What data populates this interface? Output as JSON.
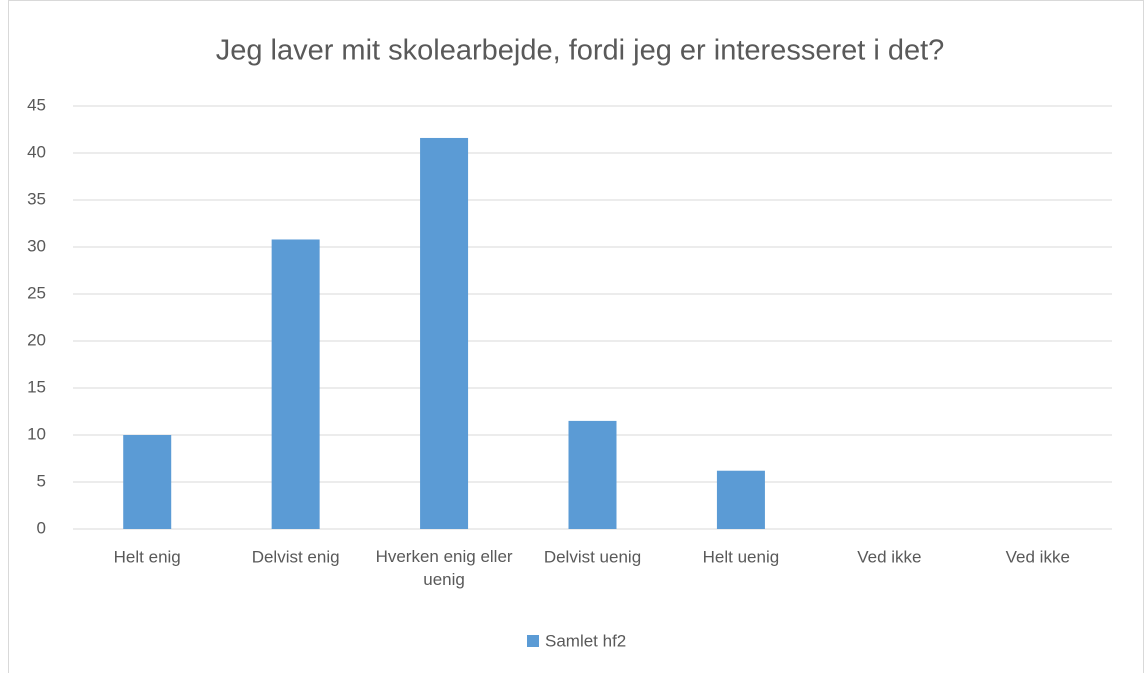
{
  "chart_data": {
    "type": "bar",
    "title": "Jeg laver mit skolearbejde, fordi jeg er interesseret i det?",
    "categories": [
      "Helt enig",
      "Delvist enig",
      "Hverken enig eller uenig",
      "Delvist uenig",
      "Helt uenig",
      "Ved ikke",
      "Ved ikke"
    ],
    "series": [
      {
        "name": "Samlet hf2",
        "color": "#5b9bd5",
        "values": [
          10,
          30.8,
          41.6,
          11.5,
          6.2,
          0,
          0
        ]
      }
    ],
    "ylim": [
      0,
      45
    ],
    "yticks": [
      0,
      5,
      10,
      15,
      20,
      25,
      30,
      35,
      40,
      45
    ],
    "grid": true,
    "legend": "bottom"
  }
}
